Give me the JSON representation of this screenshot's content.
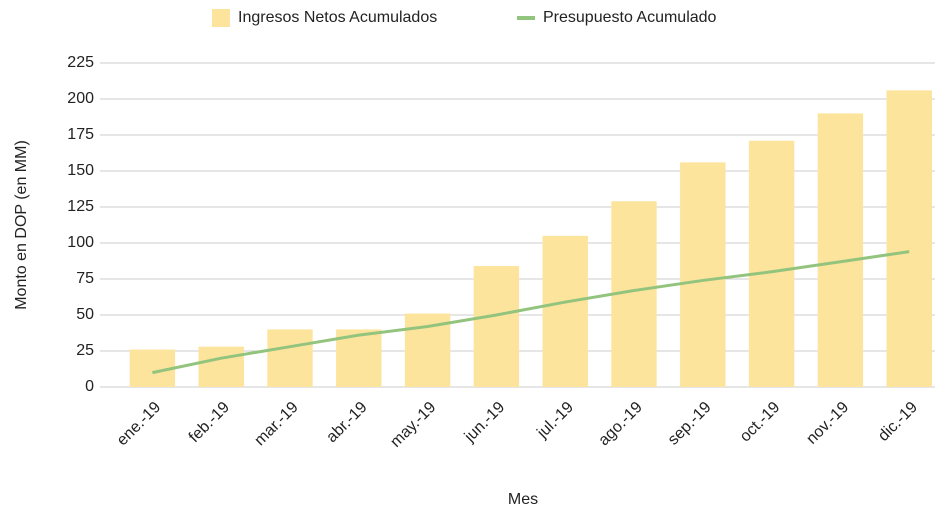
{
  "chart_data": {
    "type": "bar",
    "x_label": "Mes",
    "y_label": "Monto en DOP (en MM)",
    "categories": [
      "ene.-19",
      "feb.-19",
      "mar.-19",
      "abr.-19",
      "may.-19",
      "jun.-19",
      "jul.-19",
      "ago.-19",
      "sep.-19",
      "oct.-19",
      "nov.-19",
      "dic.-19"
    ],
    "series": [
      {
        "name": "Ingresos Netos Acumulados",
        "type": "bar",
        "color": "#fde49c",
        "values": [
          26,
          28,
          40,
          40,
          51,
          84,
          105,
          129,
          156,
          171,
          190,
          206
        ]
      },
      {
        "name": "Presupuesto Acumulado",
        "type": "line",
        "color": "#93c47d",
        "values": [
          10,
          20,
          28,
          36,
          42,
          50,
          59,
          67,
          74,
          80,
          87,
          94
        ]
      }
    ],
    "ylim": [
      0,
      225
    ],
    "yticks": [
      0,
      25,
      50,
      75,
      100,
      125,
      150,
      175,
      200,
      225
    ],
    "grid": true,
    "legend": "top"
  }
}
